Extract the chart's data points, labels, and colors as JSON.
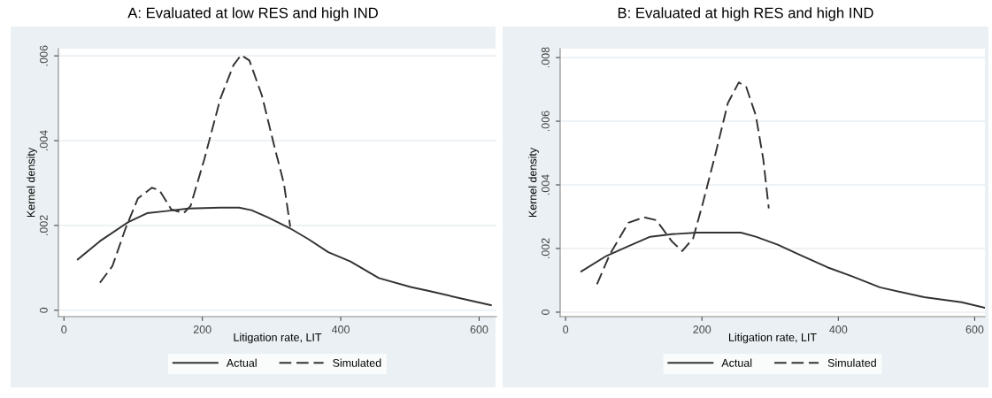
{
  "chart_data": [
    {
      "type": "line",
      "title": "A: Evaluated at low RES and high IND",
      "xlabel": "Litigation rate, LIT",
      "ylabel": "Kernel density",
      "xlim": [
        -8,
        625
      ],
      "xticks": [
        0,
        200,
        400,
        600
      ],
      "ylim": [
        -0.00015,
        0.00617
      ],
      "yticks": [
        {
          "value": 0,
          "label": "0"
        },
        {
          "value": 0.002,
          "label": ".002"
        },
        {
          "value": 0.004,
          "label": ".004"
        },
        {
          "value": 0.006,
          "label": ".006"
        }
      ],
      "grid": "y",
      "legend": "bottom",
      "series": [
        {
          "name": "Actual",
          "color": "#333333",
          "line_style": "solid",
          "x": [
            20,
            52,
            93,
            120,
            148,
            180,
            226,
            253,
            271,
            295,
            327,
            354,
            382,
            414,
            455,
            501,
            529,
            584,
            617
          ],
          "values": [
            0.0012,
            0.00163,
            0.00208,
            0.00229,
            0.00234,
            0.0024,
            0.00242,
            0.00242,
            0.00236,
            0.00219,
            0.00193,
            0.00167,
            0.00137,
            0.00115,
            0.00076,
            0.00055,
            0.00045,
            0.00024,
            0.00012
          ]
        },
        {
          "name": "Simulated",
          "color": "#333333",
          "line_style": "dashed",
          "x": [
            52,
            70,
            89,
            107,
            127,
            138,
            155,
            173,
            183,
            203,
            226,
            245,
            256,
            268,
            286,
            304,
            318,
            327
          ],
          "values": [
            0.00065,
            0.00104,
            0.00193,
            0.00264,
            0.00289,
            0.00283,
            0.00238,
            0.00229,
            0.00246,
            0.00357,
            0.00499,
            0.00578,
            0.00602,
            0.00589,
            0.00507,
            0.00387,
            0.00298,
            0.00197
          ]
        }
      ]
    },
    {
      "type": "line",
      "title": "B: Evaluated at high RES and high IND",
      "xlabel": "Litigation rate, LIT",
      "ylabel": "Kernel density",
      "xlim": [
        -8,
        615
      ],
      "xticks": [
        0,
        200,
        400,
        600
      ],
      "ylim": [
        -0.00014,
        0.00828
      ],
      "yticks": [
        {
          "value": 0,
          "label": "0"
        },
        {
          "value": 0.002,
          "label": ".002"
        },
        {
          "value": 0.004,
          "label": ".004"
        },
        {
          "value": 0.006,
          "label": ".006"
        },
        {
          "value": 0.008,
          "label": ".008"
        }
      ],
      "grid": "y",
      "legend": "bottom",
      "series": [
        {
          "name": "Actual",
          "color": "#333333",
          "line_style": "solid",
          "x": [
            23,
            60,
            92,
            124,
            156,
            193,
            257,
            279,
            311,
            347,
            384,
            420,
            461,
            526,
            581,
            614
          ],
          "values": [
            0.00128,
            0.00177,
            0.00207,
            0.00237,
            0.00245,
            0.0025,
            0.0025,
            0.00237,
            0.00212,
            0.00177,
            0.00141,
            0.00113,
            0.00078,
            0.00047,
            0.00031,
            0.00014
          ]
        },
        {
          "name": "Simulated",
          "color": "#333333",
          "line_style": "dashed",
          "x": [
            46,
            65,
            92,
            115,
            133,
            156,
            171,
            187,
            201,
            220,
            238,
            254,
            265,
            279,
            290,
            298
          ],
          "values": [
            0.00088,
            0.00182,
            0.00281,
            0.00298,
            0.00289,
            0.00222,
            0.00192,
            0.00232,
            0.0034,
            0.00499,
            0.00657,
            0.00722,
            0.00707,
            0.00618,
            0.00479,
            0.00326
          ]
        }
      ]
    }
  ]
}
